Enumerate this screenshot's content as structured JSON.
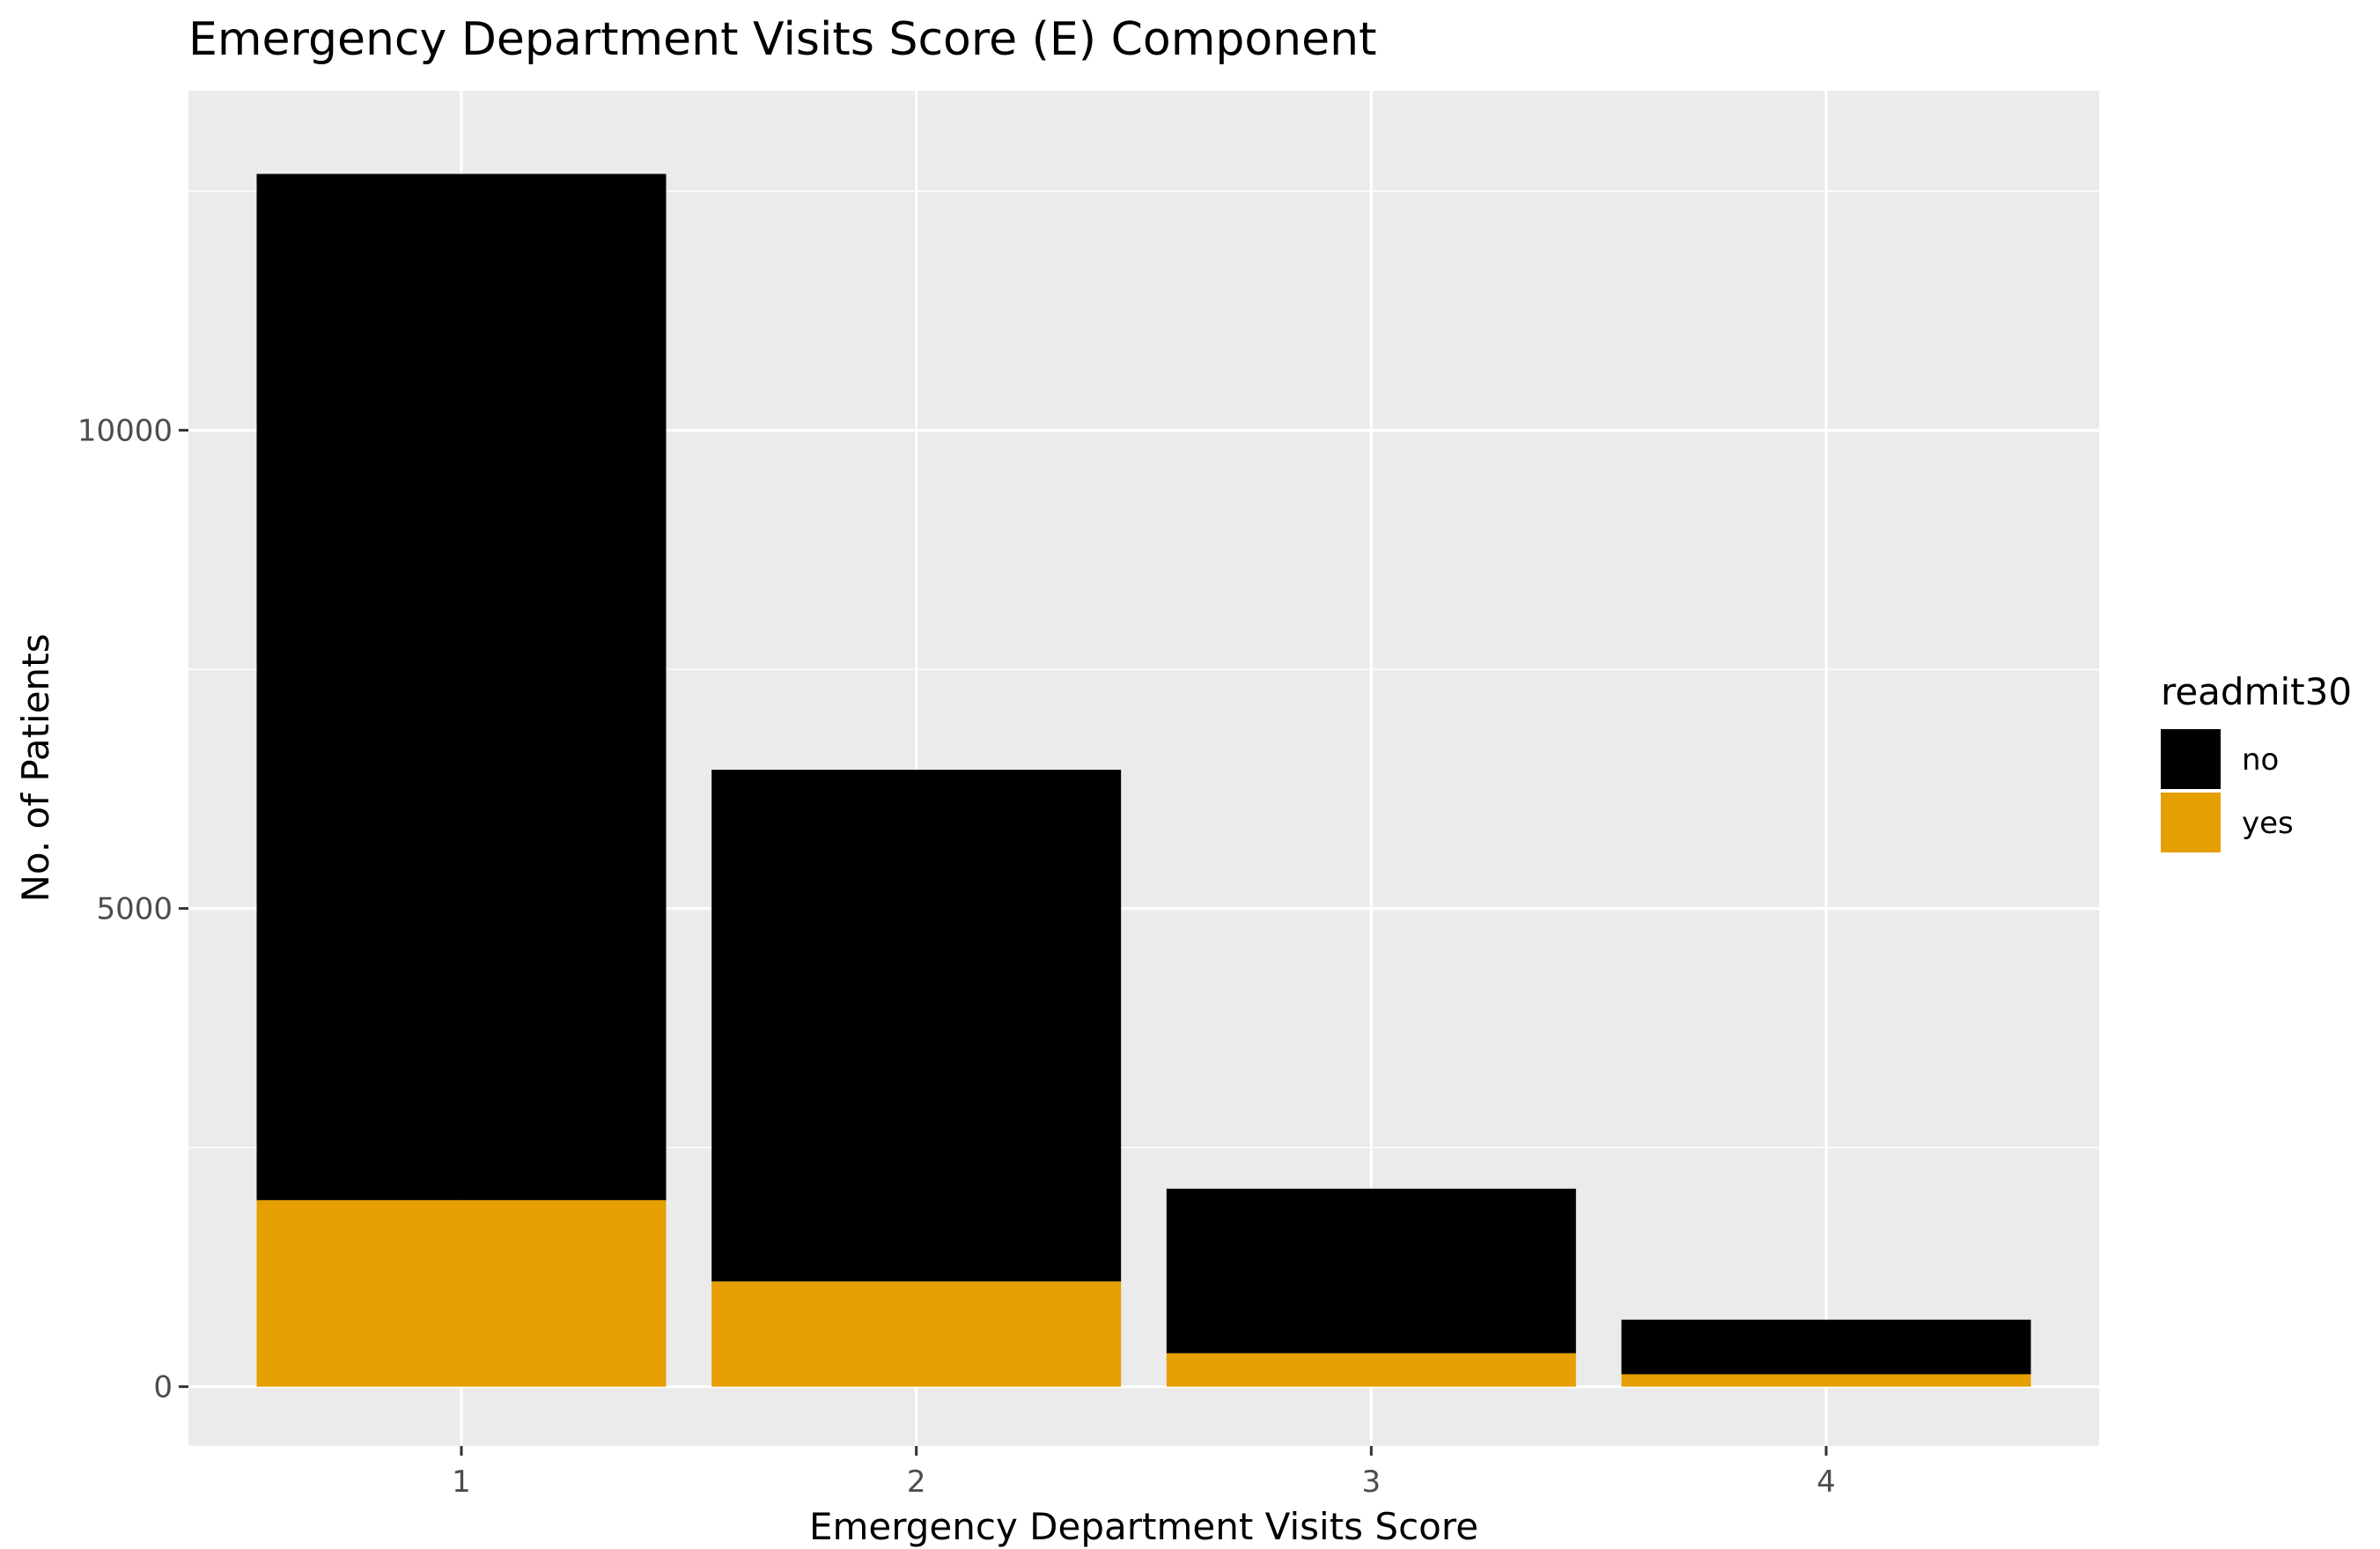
{
  "chart_data": {
    "type": "bar",
    "stacked": true,
    "title": "Emergency Department Visits Score (E) Component",
    "xlabel": "Emergency Department Visits Score",
    "ylabel": "No. of Patients",
    "categories": [
      "1",
      "2",
      "3",
      "4"
    ],
    "series": [
      {
        "name": "no",
        "color": "#000000",
        "values": [
          10730,
          5350,
          1720,
          570
        ]
      },
      {
        "name": "yes",
        "color": "#E69F00",
        "values": [
          1950,
          1100,
          350,
          130
        ]
      }
    ],
    "ylim": [
      -620,
      13550
    ],
    "yticks": [
      {
        "value": 0,
        "label": "0"
      },
      {
        "value": 5000,
        "label": "5000"
      },
      {
        "value": 10000,
        "label": "10000"
      }
    ],
    "legend": {
      "title": "readmit30",
      "position": "right"
    },
    "grid": true,
    "panel_background": "#EBEBEB",
    "gridline_color": "#FFFFFF"
  }
}
